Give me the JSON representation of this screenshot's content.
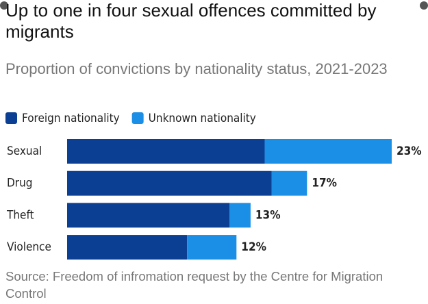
{
  "chart_data": {
    "type": "stacked-bar-horizontal",
    "title": "Up to one in four sexual offences committed by migrants",
    "subtitle": "Proportion of convictions by nationality status, 2021-2023",
    "categories": [
      "Sexual",
      "Drug",
      "Theft",
      "Violence"
    ],
    "series": [
      {
        "name": "Foreign nationality",
        "color": "#0b3f94",
        "values": [
          14,
          14.5,
          11.5,
          8.5
        ]
      },
      {
        "name": "Unknown nationality",
        "color": "#1b8fe6",
        "values": [
          9,
          2.5,
          1.5,
          3.5
        ]
      }
    ],
    "totals": [
      23,
      17,
      13,
      12
    ],
    "total_labels": [
      "23%",
      "17%",
      "13%",
      "12%"
    ],
    "xlim": [
      0,
      23
    ],
    "source": "Source: Freedom of infromation request by the Centre for Migration Control"
  }
}
